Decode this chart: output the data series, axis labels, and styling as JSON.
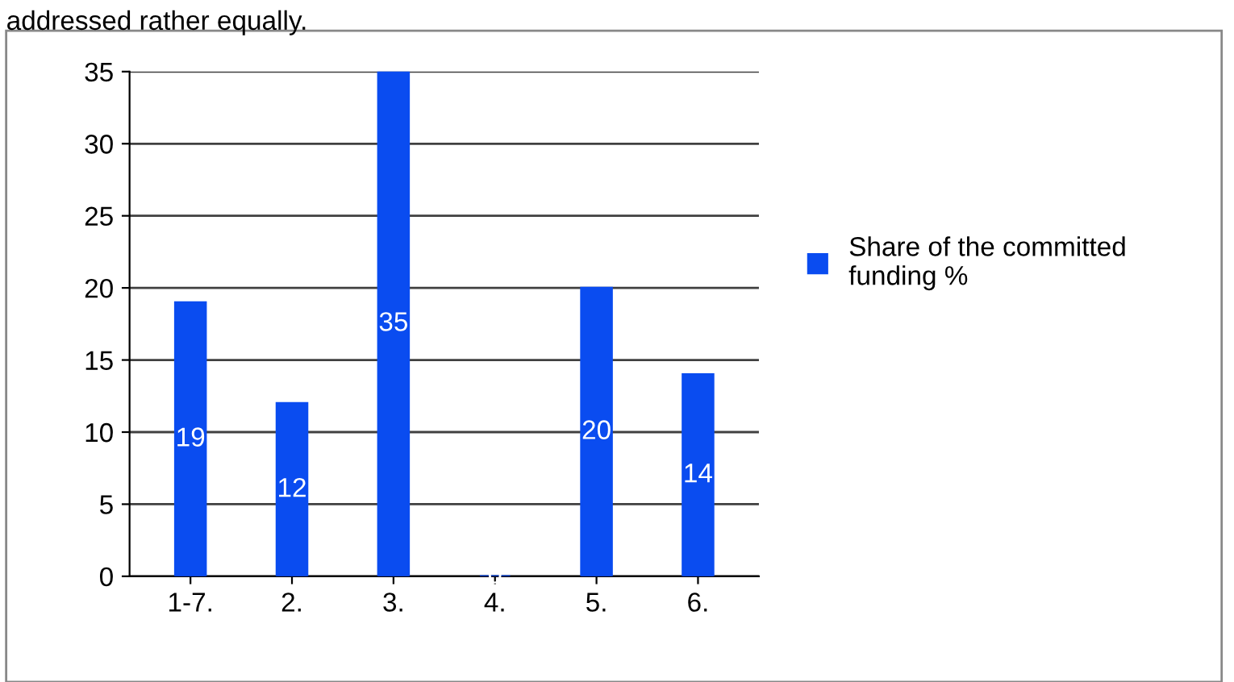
{
  "chart_data": {
    "type": "bar",
    "categories": [
      "1-7.",
      "2.",
      "3.",
      "4.",
      "5.",
      "6."
    ],
    "series": [
      {
        "name": "Share of the committed funding %",
        "color": "#0a4cf0",
        "values": [
          19,
          12,
          35,
          0,
          20,
          14
        ]
      }
    ],
    "ylim": [
      0,
      35
    ],
    "yticks": [
      0,
      5,
      10,
      15,
      20,
      25,
      30,
      35
    ],
    "grid": "y",
    "legend": "right",
    "data_labels": true,
    "annotations": [
      "addressed rather equally."
    ]
  }
}
